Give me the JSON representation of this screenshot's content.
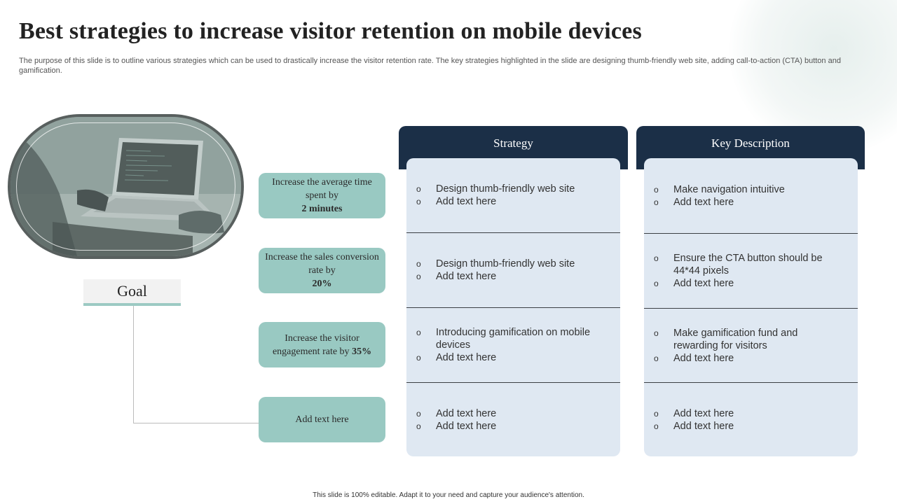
{
  "title": "Best strategies to increase visitor retention on mobile devices",
  "description": "The purpose of this slide is to outline various strategies which can be used to drastically increase the visitor retention rate. The key strategies highlighted in the slide are designing thumb-friendly web site, adding call-to-action (CTA) button and gamification.",
  "goal_label": "Goal",
  "goals": [
    {
      "text": "Increase the average time spent by",
      "bold": "2 minutes"
    },
    {
      "text": "Increase the sales conversion rate by",
      "bold": "20%"
    },
    {
      "text": "Increase the visitor engagement rate by",
      "bold": "35%"
    },
    {
      "text": "Add text here",
      "bold": ""
    }
  ],
  "headers": {
    "strategy": "Strategy",
    "key_description": "Key Description"
  },
  "strategy_rows": [
    [
      "Design thumb-friendly web site",
      "Add text here"
    ],
    [
      "Design thumb-friendly web site",
      "Add text here"
    ],
    [
      "Introducing gamification on mobile devices",
      "Add text here"
    ],
    [
      "Add text here",
      "Add text here"
    ]
  ],
  "description_rows": [
    [
      "Make navigation intuitive",
      "Add text here"
    ],
    [
      "Ensure the CTA button should be 44*44 pixels",
      "Add text here"
    ],
    [
      "Make gamification fund and rewarding for visitors",
      "Add text here"
    ],
    [
      "Add text here",
      "Add text here"
    ]
  ],
  "footer": "This slide is 100% editable. Adapt it to your need and capture your audience's attention."
}
